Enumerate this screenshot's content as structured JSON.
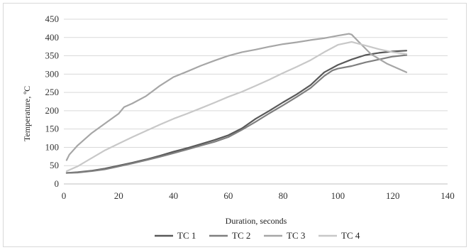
{
  "chart_data": {
    "type": "line",
    "xlabel": "Duration, seconds",
    "ylabel": "Temperature, ºC",
    "xlim": [
      0,
      140
    ],
    "ylim": [
      0,
      450
    ],
    "xticks": [
      "0",
      "20",
      "40",
      "60",
      "80",
      "100",
      "120",
      "140"
    ],
    "yticks": [
      "0",
      "50",
      "100",
      "150",
      "200",
      "250",
      "300",
      "350",
      "400",
      "450"
    ],
    "grid": "horizontal",
    "legend_position": "bottom",
    "series": [
      {
        "name": "TC 1",
        "color": "#595959",
        "x": [
          1,
          5,
          10,
          15,
          20,
          25,
          30,
          35,
          40,
          45,
          50,
          55,
          60,
          65,
          70,
          75,
          80,
          85,
          90,
          95,
          100,
          105,
          110,
          115,
          120,
          125
        ],
        "y": [
          30,
          32,
          36,
          42,
          50,
          58,
          67,
          77,
          88,
          98,
          109,
          120,
          133,
          152,
          178,
          200,
          223,
          245,
          270,
          305,
          325,
          340,
          352,
          358,
          362,
          364
        ]
      },
      {
        "name": "TC 2",
        "color": "#7f7f7f",
        "x": [
          1,
          5,
          10,
          15,
          20,
          25,
          30,
          35,
          40,
          45,
          50,
          55,
          60,
          65,
          70,
          75,
          80,
          85,
          90,
          95,
          98,
          100,
          105,
          110,
          115,
          120,
          125
        ],
        "y": [
          30,
          31,
          35,
          40,
          48,
          56,
          65,
          74,
          84,
          94,
          105,
          115,
          128,
          148,
          170,
          193,
          215,
          238,
          262,
          295,
          310,
          315,
          322,
          332,
          340,
          348,
          352
        ]
      },
      {
        "name": "TC 3",
        "color": "#a6a6a6",
        "x": [
          1,
          2,
          5,
          10,
          15,
          20,
          22,
          25,
          30,
          35,
          40,
          45,
          50,
          55,
          60,
          65,
          70,
          75,
          80,
          85,
          90,
          95,
          100,
          104,
          105,
          108,
          112,
          118,
          125
        ],
        "y": [
          65,
          80,
          105,
          138,
          165,
          192,
          210,
          220,
          240,
          268,
          292,
          307,
          323,
          337,
          350,
          360,
          367,
          375,
          382,
          387,
          393,
          398,
          405,
          410,
          408,
          385,
          355,
          328,
          305
        ]
      },
      {
        "name": "TC 4",
        "color": "#c8c8c8",
        "x": [
          1,
          5,
          10,
          15,
          20,
          25,
          30,
          35,
          40,
          45,
          50,
          55,
          60,
          65,
          70,
          75,
          80,
          85,
          90,
          95,
          100,
          105,
          110,
          115,
          120,
          125
        ],
        "y": [
          35,
          48,
          70,
          92,
          110,
          128,
          145,
          162,
          178,
          192,
          207,
          222,
          238,
          252,
          268,
          285,
          303,
          320,
          338,
          360,
          380,
          388,
          378,
          368,
          360,
          355
        ]
      }
    ]
  }
}
